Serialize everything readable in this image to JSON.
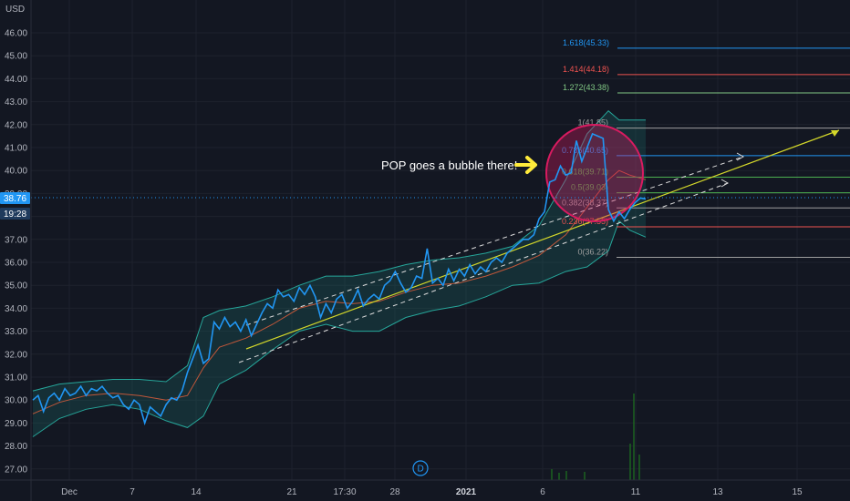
{
  "currency": "USD",
  "price_badge": {
    "price": "38.76",
    "countdown": "19:28"
  },
  "annotation": {
    "text": "POP goes a bubble there!",
    "arrow_icon": "right-arrow-icon"
  },
  "marker": {
    "label": "D"
  },
  "colors": {
    "background": "#131722",
    "price_line": "#2196f3",
    "band_line": "#26a69a",
    "band_fill": "#1e6f6a",
    "basis_line": "#c1573a",
    "trend_line": "#d4d82a",
    "channel_line": "#dcdcdc",
    "bubble": "#d81b60",
    "annotation_arrow": "#ffeb3b",
    "badge": "#2196f3"
  },
  "chart_data": {
    "type": "line",
    "y_ticks": [
      "46.00",
      "45.00",
      "44.00",
      "43.00",
      "42.00",
      "41.00",
      "40.00",
      "39.00",
      "38.00",
      "37.00",
      "36.00",
      "35.00",
      "34.00",
      "33.00",
      "32.00",
      "31.00",
      "30.00",
      "29.00",
      "28.00",
      "27.00"
    ],
    "x_ticks": [
      "Dec",
      "7",
      "14",
      "21",
      "17:30",
      "28",
      "2021",
      "6",
      "11",
      "13",
      "15"
    ],
    "ylim": [
      26.5,
      46.6
    ],
    "grid": true,
    "series": [
      {
        "role": "price",
        "x": [
          0,
          1,
          2,
          3,
          4,
          5,
          6,
          7,
          8,
          9,
          10,
          11,
          12,
          13,
          14,
          15,
          16,
          17,
          18,
          19,
          20,
          21,
          22,
          23,
          24,
          25,
          26,
          27,
          28,
          29,
          30,
          31,
          32,
          33,
          34,
          35,
          36,
          37,
          38,
          39,
          40,
          41,
          42,
          43,
          44,
          45,
          46,
          47,
          48,
          49,
          50,
          51,
          52,
          53,
          54,
          55,
          56,
          57,
          58,
          59,
          60,
          61,
          62,
          63,
          64,
          65,
          66,
          67,
          68,
          69,
          70,
          71,
          72,
          73,
          74,
          75,
          76,
          77,
          78,
          79,
          80,
          81,
          82,
          83,
          84,
          85,
          86,
          87,
          88,
          89,
          90,
          91,
          92,
          93,
          94,
          95,
          96,
          97,
          98,
          99,
          100,
          101,
          102,
          103,
          104,
          105,
          106,
          107,
          108,
          109,
          110,
          111,
          112,
          113,
          114,
          115
        ],
        "y": [
          30.0,
          30.2,
          29.5,
          30.1,
          30.3,
          30.0,
          30.5,
          30.2,
          30.3,
          30.6,
          30.2,
          30.5,
          30.4,
          30.6,
          30.3,
          30.1,
          30.2,
          29.8,
          29.6,
          30.0,
          29.8,
          29.0,
          29.7,
          29.5,
          29.3,
          29.8,
          30.1,
          30.0,
          30.4,
          31.2,
          31.8,
          32.4,
          31.6,
          31.8,
          33.4,
          33.1,
          33.6,
          33.2,
          33.4,
          33.0,
          33.5,
          32.8,
          33.3,
          33.8,
          34.2,
          34.0,
          34.8,
          34.5,
          34.6,
          34.3,
          34.9,
          34.6,
          35.0,
          34.5,
          33.6,
          34.2,
          33.8,
          34.4,
          34.6,
          34.0,
          34.3,
          34.8,
          34.1,
          34.4,
          34.6,
          34.4,
          35.0,
          35.2,
          35.6,
          35.1,
          34.7,
          34.9,
          35.4,
          35.3,
          36.6,
          35.1,
          35.3,
          35.0,
          35.7,
          35.2,
          35.7,
          35.4,
          35.9,
          35.5,
          35.8,
          35.6,
          36.0,
          36.2,
          36.0,
          36.4,
          36.6,
          36.8,
          37.0,
          37.0,
          37.2,
          37.9,
          38.2,
          39.5,
          39.6,
          40.2,
          39.8,
          39.9,
          41.3,
          40.4,
          41.0,
          41.6,
          41.5,
          41.4,
          38.3,
          37.8,
          38.2,
          37.9,
          38.3,
          38.6,
          38.8,
          38.76
        ]
      },
      {
        "role": "upper_band",
        "x": [
          0,
          5,
          10,
          15,
          20,
          25,
          29,
          32,
          35,
          40,
          45,
          50,
          55,
          60,
          65,
          70,
          75,
          80,
          85,
          90,
          95,
          100,
          104,
          108,
          110,
          112,
          115
        ],
        "y": [
          30.4,
          30.7,
          30.8,
          30.9,
          30.9,
          30.8,
          31.5,
          33.6,
          33.9,
          34.1,
          34.5,
          35.0,
          35.4,
          35.4,
          35.6,
          35.9,
          36.1,
          36.2,
          36.4,
          36.7,
          37.6,
          39.6,
          41.6,
          42.6,
          42.2,
          42.2,
          42.2
        ]
      },
      {
        "role": "lower_band",
        "x": [
          0,
          5,
          10,
          15,
          20,
          25,
          29,
          32,
          35,
          40,
          45,
          50,
          55,
          60,
          65,
          70,
          75,
          80,
          85,
          90,
          95,
          100,
          104,
          108,
          110,
          112,
          115
        ],
        "y": [
          28.4,
          29.2,
          29.6,
          29.8,
          29.6,
          29.1,
          28.8,
          29.3,
          30.7,
          31.3,
          32.2,
          33.0,
          33.3,
          33.0,
          33.0,
          33.6,
          33.9,
          34.1,
          34.5,
          35.0,
          35.1,
          35.6,
          35.8,
          36.5,
          37.8,
          37.4,
          37.1
        ]
      },
      {
        "role": "basis",
        "x": [
          0,
          5,
          10,
          15,
          20,
          25,
          29,
          32,
          35,
          40,
          45,
          50,
          55,
          60,
          65,
          70,
          75,
          80,
          85,
          90,
          95,
          100,
          104,
          108,
          110,
          112,
          115
        ],
        "y": [
          29.4,
          29.9,
          30.2,
          30.3,
          30.2,
          30.0,
          30.2,
          31.4,
          32.3,
          32.7,
          33.3,
          34.0,
          34.3,
          34.2,
          34.3,
          34.7,
          35.0,
          35.1,
          35.4,
          35.8,
          36.3,
          37.2,
          38.4,
          39.6,
          40.0,
          39.8,
          39.6
        ]
      }
    ],
    "fibonacci": [
      {
        "ratio": "1.618",
        "price": "45.33",
        "label": "1.618(45.33)",
        "color": "#2196f3"
      },
      {
        "ratio": "1.414",
        "price": "44.18",
        "label": "1.414(44.18)",
        "color": "#ef5350"
      },
      {
        "ratio": "1.272",
        "price": "43.38",
        "label": "1.272(43.38)",
        "color": "#81c784"
      },
      {
        "ratio": "1",
        "price": "41.85",
        "label": "1(41.85)",
        "color": "#9e9e9e"
      },
      {
        "ratio": "0.786",
        "price": "40.65",
        "label": "0.786(40.65)",
        "color": "#2196f3"
      },
      {
        "ratio": "0.618",
        "price": "39.71",
        "label": "0.618(39.71)",
        "color": "#4caf50"
      },
      {
        "ratio": "0.5",
        "price": "39.03",
        "label": "0.5(39.03)",
        "color": "#4caf50"
      },
      {
        "ratio": "0.382",
        "price": "38.37",
        "label": "0.382(38.37)",
        "color": "#9e9e9e"
      },
      {
        "ratio": "0.236",
        "price": "37.55",
        "label": "0.236(37.55)",
        "color": "#ef5350"
      },
      {
        "ratio": "0",
        "price": "36.22",
        "label": "0(36.22)",
        "color": "#9e9e9e"
      }
    ]
  }
}
